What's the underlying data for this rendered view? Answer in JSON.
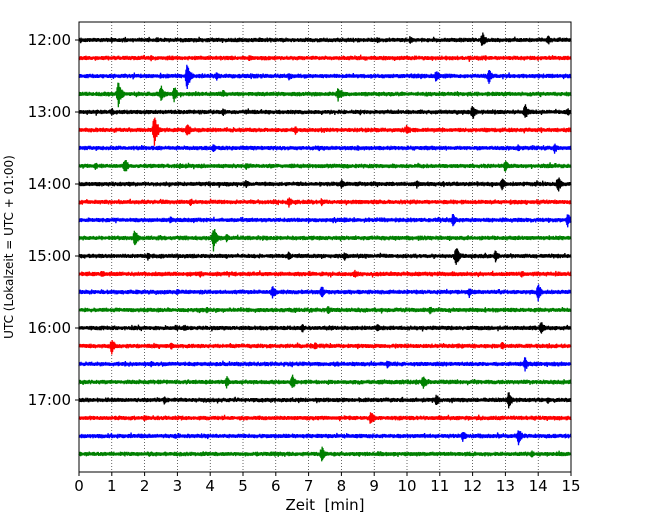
{
  "chart_data": {
    "type": "line",
    "title": "",
    "xlabel": "Zeit  [min]",
    "ylabel": "UTC (Lokalzeit = UTC + 01:00)",
    "xlim": [
      0,
      15
    ],
    "x_ticks": [
      "0",
      "1",
      "2",
      "3",
      "4",
      "5",
      "6",
      "7",
      "8",
      "9",
      "10",
      "11",
      "12",
      "13",
      "14",
      "15"
    ],
    "y_ticks": [
      "12:00",
      "13:00",
      "14:00",
      "15:00",
      "16:00",
      "17:00"
    ],
    "grid": "vertical dotted",
    "colors": [
      "#000000",
      "#ff0000",
      "#0000ff",
      "#008000"
    ],
    "series": [
      {
        "start": "12:00",
        "color": "#000000",
        "events": [
          [
            1.0,
            0.25
          ],
          [
            2.4,
            0.2
          ],
          [
            5.5,
            0.2
          ],
          [
            9.1,
            0.22
          ],
          [
            10.1,
            0.3
          ],
          [
            12.3,
            0.55
          ],
          [
            14.3,
            0.35
          ]
        ]
      },
      {
        "start": "12:15",
        "color": "#ff0000",
        "events": [
          [
            2.2,
            0.2
          ],
          [
            5.2,
            0.25
          ],
          [
            11.9,
            0.25
          ],
          [
            12.4,
            0.2
          ]
        ]
      },
      {
        "start": "12:30",
        "color": "#0000ff",
        "events": [
          [
            3.3,
            0.95
          ],
          [
            4.2,
            0.3
          ],
          [
            6.4,
            0.3
          ],
          [
            10.9,
            0.5
          ],
          [
            12.5,
            0.55
          ]
        ]
      },
      {
        "start": "12:45",
        "color": "#008000",
        "events": [
          [
            1.2,
            0.9
          ],
          [
            2.5,
            0.6
          ],
          [
            2.9,
            0.6
          ],
          [
            4.4,
            0.3
          ],
          [
            7.9,
            0.5
          ],
          [
            8.0,
            0.3
          ]
        ]
      },
      {
        "start": "13:00",
        "color": "#000000",
        "events": [
          [
            1.0,
            0.3
          ],
          [
            4.4,
            0.3
          ],
          [
            12.0,
            0.6
          ],
          [
            13.6,
            0.55
          ],
          [
            14.9,
            0.3
          ]
        ]
      },
      {
        "start": "13:15",
        "color": "#ff0000",
        "events": [
          [
            2.3,
            1.2
          ],
          [
            3.3,
            0.6
          ],
          [
            6.6,
            0.3
          ],
          [
            10.0,
            0.4
          ]
        ]
      },
      {
        "start": "13:30",
        "color": "#0000ff",
        "events": [
          [
            4.1,
            0.3
          ],
          [
            8.5,
            0.25
          ],
          [
            13.4,
            0.3
          ],
          [
            14.5,
            0.4
          ]
        ]
      },
      {
        "start": "13:45",
        "color": "#008000",
        "events": [
          [
            0.5,
            0.3
          ],
          [
            1.4,
            0.6
          ],
          [
            5.1,
            0.25
          ],
          [
            13.0,
            0.45
          ]
        ]
      },
      {
        "start": "14:00",
        "color": "#000000",
        "events": [
          [
            5.1,
            0.3
          ],
          [
            8.0,
            0.35
          ],
          [
            10.3,
            0.3
          ],
          [
            12.9,
            0.45
          ],
          [
            14.6,
            0.6
          ]
        ]
      },
      {
        "start": "14:15",
        "color": "#ff0000",
        "events": [
          [
            3.4,
            0.3
          ],
          [
            6.4,
            0.4
          ],
          [
            7.4,
            0.3
          ]
        ]
      },
      {
        "start": "14:30",
        "color": "#0000ff",
        "events": [
          [
            2.8,
            0.3
          ],
          [
            8.1,
            0.25
          ],
          [
            11.4,
            0.45
          ],
          [
            14.9,
            0.5
          ]
        ]
      },
      {
        "start": "14:45",
        "color": "#008000",
        "events": [
          [
            1.7,
            0.6
          ],
          [
            4.1,
            0.85
          ],
          [
            4.5,
            0.3
          ]
        ]
      },
      {
        "start": "15:00",
        "color": "#000000",
        "events": [
          [
            2.1,
            0.3
          ],
          [
            6.4,
            0.35
          ],
          [
            8.1,
            0.3
          ],
          [
            11.5,
            0.7
          ],
          [
            12.7,
            0.45
          ]
        ]
      },
      {
        "start": "15:15",
        "color": "#ff0000",
        "events": [
          [
            0.7,
            0.3
          ],
          [
            3.7,
            0.25
          ],
          [
            8.4,
            0.3
          ],
          [
            13.5,
            0.3
          ]
        ]
      },
      {
        "start": "15:30",
        "color": "#0000ff",
        "events": [
          [
            3.0,
            0.25
          ],
          [
            5.9,
            0.55
          ],
          [
            7.4,
            0.45
          ],
          [
            11.9,
            0.4
          ],
          [
            14.0,
            0.6
          ]
        ]
      },
      {
        "start": "15:45",
        "color": "#008000",
        "events": [
          [
            3.9,
            0.3
          ],
          [
            7.6,
            0.35
          ],
          [
            10.7,
            0.3
          ]
        ]
      },
      {
        "start": "16:00",
        "color": "#000000",
        "events": [
          [
            3.2,
            0.3
          ],
          [
            6.8,
            0.35
          ],
          [
            9.1,
            0.3
          ],
          [
            14.1,
            0.55
          ]
        ]
      },
      {
        "start": "16:15",
        "color": "#ff0000",
        "events": [
          [
            1.0,
            0.55
          ],
          [
            2.8,
            0.3
          ],
          [
            7.2,
            0.3
          ],
          [
            12.9,
            0.3
          ]
        ]
      },
      {
        "start": "16:30",
        "color": "#0000ff",
        "events": [
          [
            2.2,
            0.25
          ],
          [
            9.4,
            0.35
          ],
          [
            13.6,
            0.5
          ]
        ]
      },
      {
        "start": "16:45",
        "color": "#008000",
        "events": [
          [
            4.5,
            0.45
          ],
          [
            6.5,
            0.55
          ],
          [
            10.5,
            0.6
          ]
        ]
      },
      {
        "start": "17:00",
        "color": "#000000",
        "events": [
          [
            2.6,
            0.3
          ],
          [
            10.9,
            0.45
          ],
          [
            13.1,
            0.6
          ],
          [
            14.3,
            0.3
          ]
        ]
      },
      {
        "start": "17:15",
        "color": "#ff0000",
        "events": [
          [
            2.0,
            0.25
          ],
          [
            8.9,
            0.55
          ]
        ]
      },
      {
        "start": "17:30",
        "color": "#0000ff",
        "events": [
          [
            11.7,
            0.45
          ],
          [
            13.4,
            0.65
          ]
        ]
      },
      {
        "start": "17:45",
        "color": "#008000",
        "events": [
          [
            7.4,
            0.55
          ],
          [
            13.8,
            0.3
          ]
        ]
      }
    ]
  }
}
